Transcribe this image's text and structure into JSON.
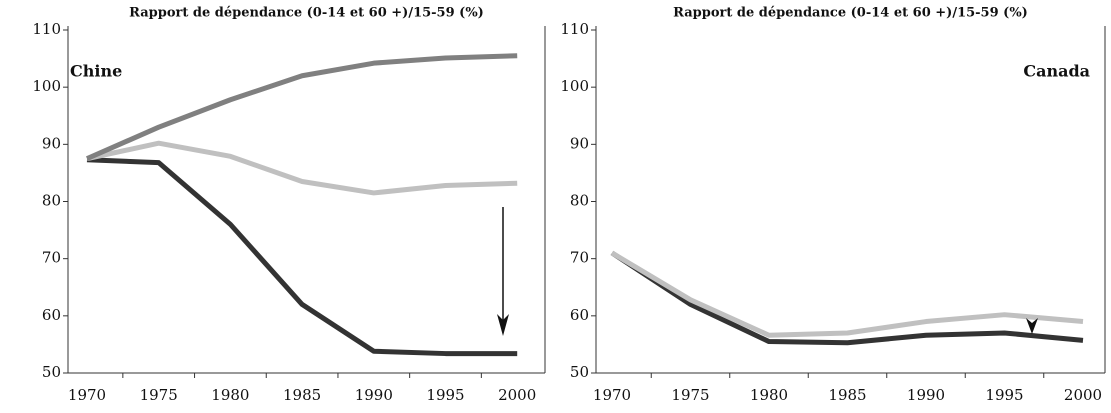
{
  "chart_data": [
    {
      "type": "line",
      "title": "Rapport de dépendance (0-14 et 60 +)/15-59 (%)",
      "annotation": "Chine",
      "categories": [
        1970,
        1975,
        1980,
        1985,
        1990,
        1995,
        2000
      ],
      "series": [
        {
          "color": "#808080",
          "values": [
            87.5,
            93,
            97.8,
            102,
            104.2,
            105.1,
            105.5
          ]
        },
        {
          "color": "#c0c0c0",
          "values": [
            87.5,
            90.2,
            87.9,
            83.5,
            81.5,
            82.8,
            83.2
          ]
        },
        {
          "color": "#333333",
          "values": [
            87.3,
            86.8,
            76,
            62,
            53.8,
            53.4,
            53.4
          ]
        }
      ],
      "ylim": [
        50,
        110
      ],
      "yticks": [
        50,
        60,
        70,
        80,
        90,
        100,
        110
      ]
    },
    {
      "type": "line",
      "title": "Rapport de dépendance (0-14 et 60 +)/15-59 (%)",
      "annotation": "Canada",
      "categories": [
        1970,
        1975,
        1980,
        1985,
        1990,
        1995,
        2000
      ],
      "series": [
        {
          "color": "#c0c0c0",
          "values": [
            71,
            62.8,
            56.6,
            57,
            59,
            60.2,
            59
          ]
        },
        {
          "color": "#333333",
          "values": [
            71,
            62,
            55.5,
            55.3,
            56.6,
            57,
            55.7
          ]
        }
      ],
      "ylim": [
        50,
        110
      ],
      "yticks": [
        50,
        60,
        70,
        80,
        90,
        100,
        110
      ]
    }
  ]
}
